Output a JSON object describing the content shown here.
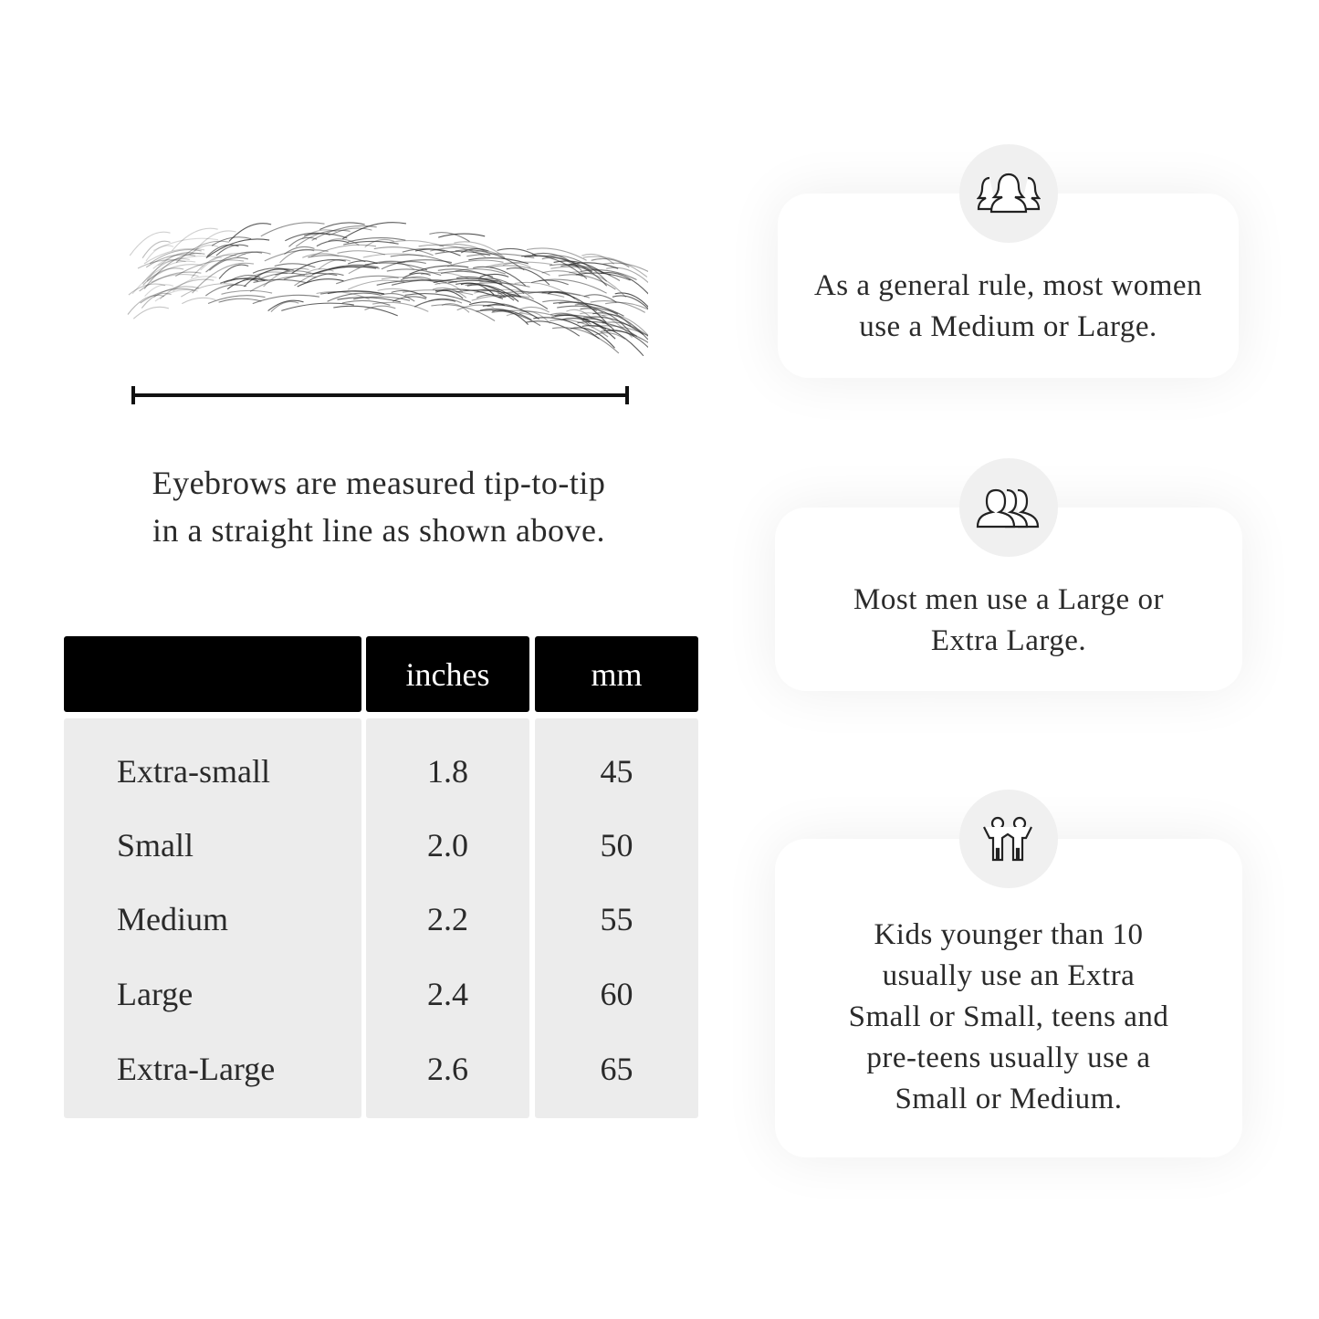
{
  "illustration": {
    "eyebrow": "eyebrow-sketch",
    "measure_line": "tip-to-tip-measure-line"
  },
  "caption": [
    "Eyebrows are measured tip-to-tip",
    "in a straight line as shown above."
  ],
  "size_table": {
    "headers": [
      "",
      "inches",
      "mm"
    ],
    "rows": [
      {
        "size": "Extra-small",
        "inches": "1.8",
        "mm": "45"
      },
      {
        "size": "Small",
        "inches": "2.0",
        "mm": "50"
      },
      {
        "size": "Medium",
        "inches": "2.2",
        "mm": "55"
      },
      {
        "size": "Large",
        "inches": "2.4",
        "mm": "60"
      },
      {
        "size": "Extra-Large",
        "inches": "2.6",
        "mm": "65"
      }
    ]
  },
  "cards": [
    {
      "icon": "women-group-icon",
      "lines": [
        "As a general rule, most women",
        "use a Medium or Large."
      ]
    },
    {
      "icon": "men-group-icon",
      "lines": [
        "Most men use a Large or",
        "Extra Large."
      ]
    },
    {
      "icon": "kids-icon",
      "lines": [
        "Kids younger than 10",
        "usually use an Extra",
        "Small or Small, teens and",
        "pre-teens usually use a",
        "Small or Medium."
      ]
    }
  ],
  "colors": {
    "header_bg": "#000000",
    "body_bg": "#ececec",
    "circle_bg": "#f0f0f0"
  }
}
